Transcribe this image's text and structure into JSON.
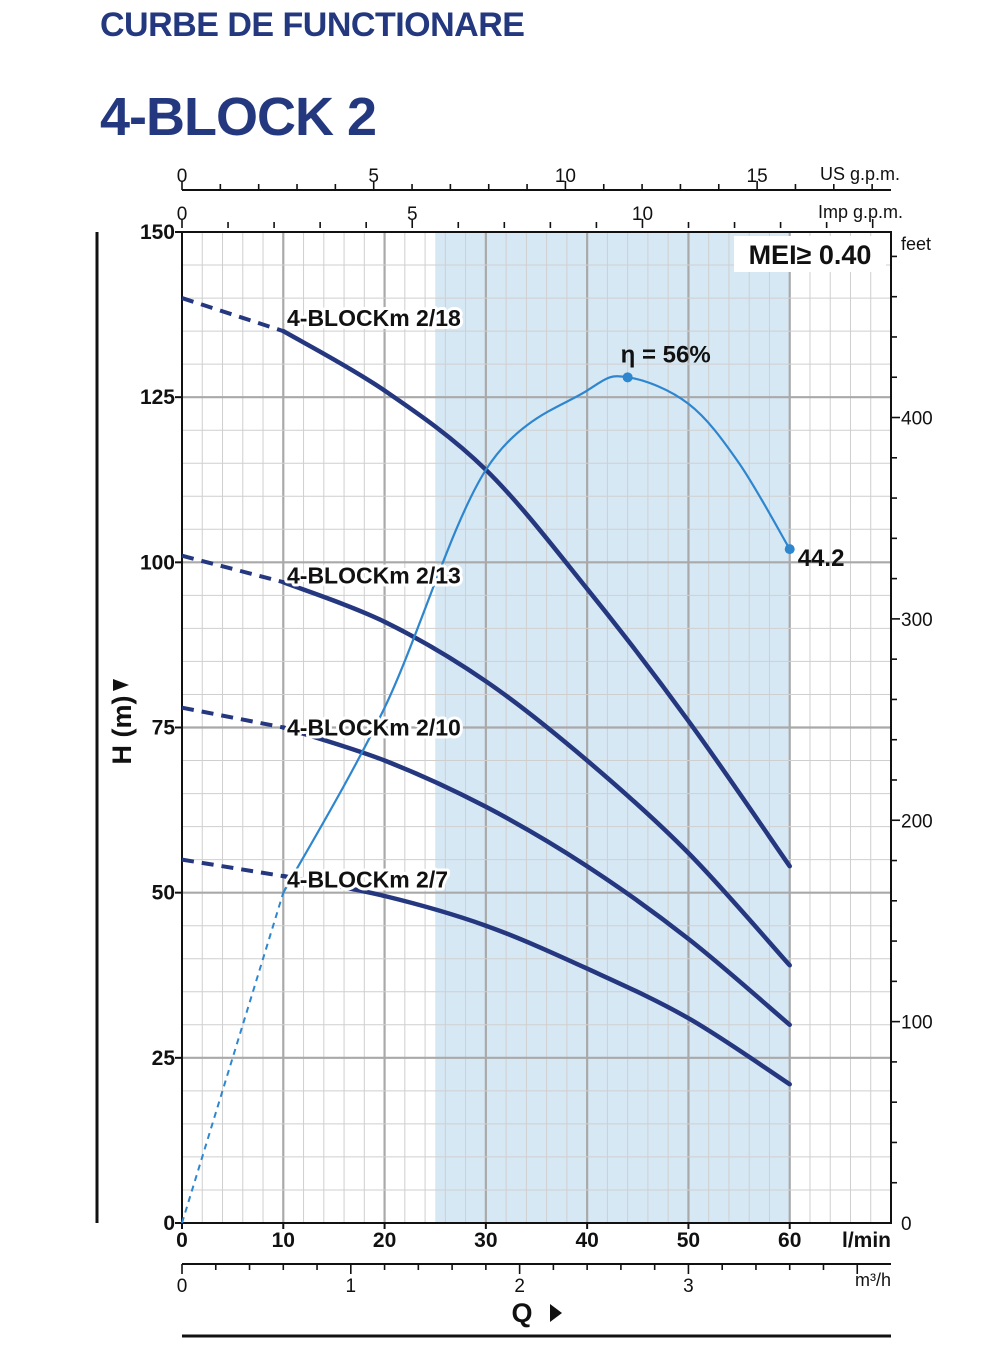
{
  "header": {
    "subtitle": "CURBE DE FUNCTIONARE",
    "title": "4-BLOCK 2"
  },
  "chart_data": {
    "type": "line",
    "x_axis": {
      "label": "Q",
      "unit": "l/min",
      "range": [
        0,
        70
      ],
      "ticks": [
        0,
        10,
        20,
        30,
        40,
        50,
        60
      ]
    },
    "x_axis_m3h": {
      "unit": "m³/h",
      "ticks": [
        0,
        1,
        2,
        3
      ]
    },
    "x_axis_usgpm": {
      "unit": "US g.p.m.",
      "ticks": [
        0,
        5,
        10,
        15
      ]
    },
    "x_axis_impgpm": {
      "unit": "Imp g.p.m.",
      "ticks": [
        0,
        5,
        10
      ]
    },
    "y_axis": {
      "label": "H (m)",
      "range": [
        0,
        150
      ],
      "ticks": [
        0,
        25,
        50,
        75,
        100,
        125,
        150
      ]
    },
    "y_axis_feet": {
      "unit": "feet",
      "ticks": [
        0,
        100,
        200,
        300,
        400
      ]
    },
    "grid": true,
    "mei_label": "MEI≥ 0.40",
    "recommended_range": [
      25,
      60
    ],
    "series": [
      {
        "name": "4-BLOCKm 2/18",
        "shutoff_head": 140,
        "x": [
          10,
          20,
          30,
          40,
          50,
          60
        ],
        "y": [
          135,
          126,
          114,
          96,
          76,
          54
        ]
      },
      {
        "name": "4-BLOCKm 2/13",
        "shutoff_head": 101,
        "x": [
          10,
          20,
          30,
          40,
          50,
          60
        ],
        "y": [
          97,
          91,
          82,
          70,
          56,
          39
        ]
      },
      {
        "name": "4-BLOCKm 2/10",
        "shutoff_head": 78,
        "x": [
          10,
          20,
          30,
          40,
          50,
          60
        ],
        "y": [
          75,
          70,
          63,
          54,
          43,
          30
        ]
      },
      {
        "name": "4-BLOCKm 2/7",
        "shutoff_head": 55,
        "x": [
          10,
          20,
          30,
          40,
          50,
          60
        ],
        "y": [
          52.5,
          49.5,
          45,
          38.5,
          31,
          21
        ]
      }
    ],
    "efficiency": {
      "peak_label": "η = 56%",
      "peak_x": 44,
      "end_label": "44.2",
      "end_x": 60,
      "x": [
        0,
        10,
        20,
        30,
        40,
        44,
        50,
        55,
        60
      ],
      "y": [
        0,
        50,
        78,
        114,
        126,
        128,
        124,
        115,
        102
      ]
    }
  }
}
